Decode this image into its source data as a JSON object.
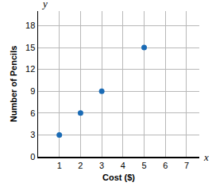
{
  "chart_data": {
    "type": "scatter",
    "x_label": "Cost ($)",
    "y_label": "Number of Pencils",
    "x": [
      1,
      2,
      3,
      5
    ],
    "values": [
      3,
      6,
      9,
      15
    ],
    "color": "#1a6bb5",
    "marker": "circle",
    "xlim": [
      0,
      7.6
    ],
    "xticks": [
      1,
      2,
      3,
      4,
      5,
      6,
      7
    ],
    "ylim": [
      0,
      20
    ],
    "yticks": [
      0,
      3,
      6,
      9,
      12,
      15,
      18
    ],
    "grid": true,
    "annotations": [
      "x",
      "y"
    ]
  }
}
